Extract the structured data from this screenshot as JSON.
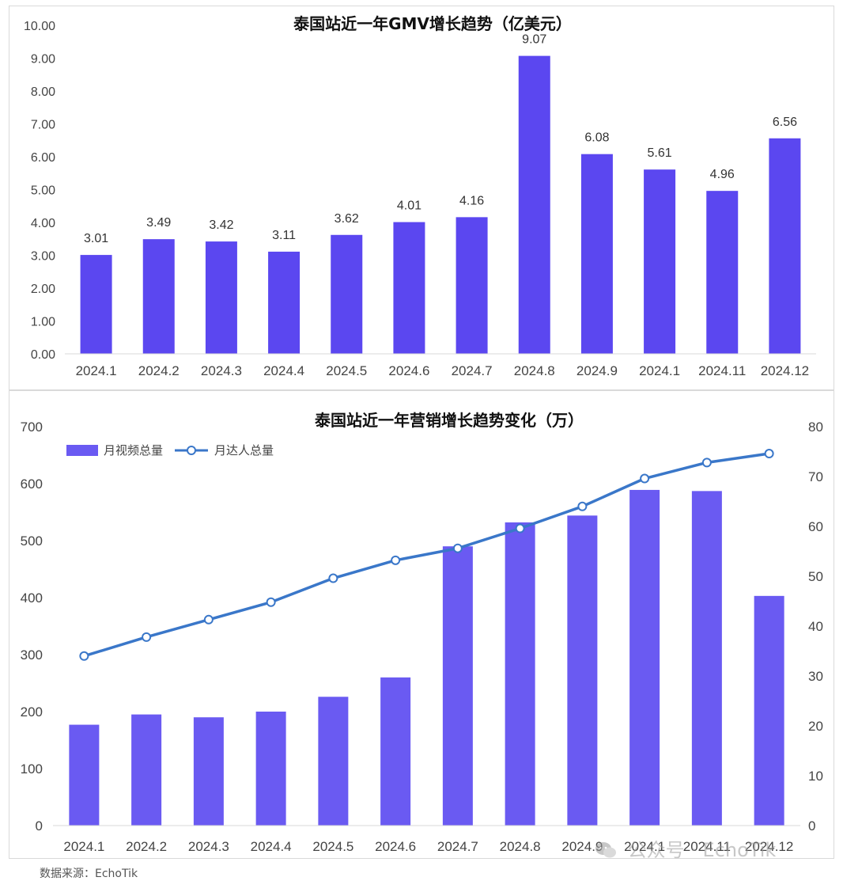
{
  "colors": {
    "bar": "#5b47f0",
    "bar2": "#6a5af2",
    "line": "#3a77c9",
    "marker_fill": "#ffffff"
  },
  "chart_data": [
    {
      "type": "bar",
      "title": "泰国站近一年GMV增长趋势（亿美元）",
      "categories": [
        "2024.1",
        "2024.2",
        "2024.3",
        "2024.4",
        "2024.5",
        "2024.6",
        "2024.7",
        "2024.8",
        "2024.9",
        "2024.1",
        "2024.11",
        "2024.12"
      ],
      "values": [
        3.01,
        3.49,
        3.42,
        3.11,
        3.62,
        4.01,
        4.16,
        9.07,
        6.08,
        5.61,
        4.96,
        6.56
      ],
      "data_labels": [
        "3.01",
        "3.49",
        "3.42",
        "3.11",
        "3.62",
        "4.01",
        "4.16",
        "9.07",
        "6.08",
        "5.61",
        "4.96",
        "6.56"
      ],
      "yticks": [
        "0.00",
        "1.00",
        "2.00",
        "3.00",
        "4.00",
        "5.00",
        "6.00",
        "7.00",
        "8.00",
        "9.00",
        "10.00"
      ],
      "ylim": [
        0,
        10
      ],
      "grid": false
    },
    {
      "type": "bar+line",
      "title": "泰国站近一年营销增长趋势变化（万）",
      "categories": [
        "2024.1",
        "2024.2",
        "2024.3",
        "2024.4",
        "2024.5",
        "2024.6",
        "2024.7",
        "2024.8",
        "2024.9",
        "2024.1",
        "2024.11",
        "2024.12"
      ],
      "series": [
        {
          "name": "月视频总量",
          "type": "bar",
          "axis": "left",
          "values": [
            177,
            195,
            190,
            200,
            226,
            260,
            490,
            532,
            544,
            589,
            587,
            403
          ]
        },
        {
          "name": "月达人总量",
          "type": "line",
          "axis": "right",
          "values": [
            34.0,
            37.8,
            41.3,
            44.8,
            49.6,
            53.2,
            55.6,
            59.6,
            64.0,
            69.6,
            72.8,
            74.6
          ]
        }
      ],
      "yticks_left": [
        "0",
        "100",
        "200",
        "300",
        "400",
        "500",
        "600",
        "700"
      ],
      "yticks_right": [
        "0",
        "10",
        "20",
        "30",
        "40",
        "50",
        "60",
        "70",
        "80"
      ],
      "ylim_left": [
        0,
        700
      ],
      "ylim_right": [
        0,
        80
      ],
      "legend_position": "top-left",
      "grid": false
    }
  ],
  "source_note": "数据来源：EchoTik",
  "watermark": "公众号 · EchoTik"
}
